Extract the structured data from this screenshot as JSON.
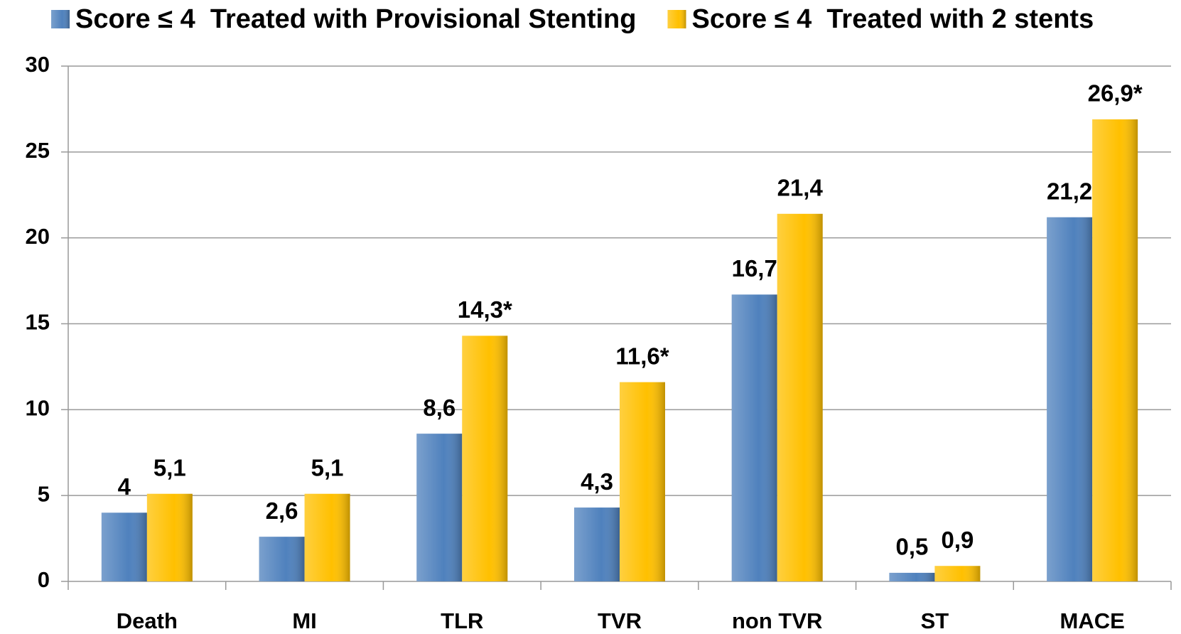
{
  "chart_data": {
    "type": "bar",
    "categories": [
      "Death",
      "MI",
      "TLR",
      "TVR",
      "non TVR",
      "ST",
      "MACE"
    ],
    "series": [
      {
        "name": "Score ≤ 4  Treated with Provisional Stenting",
        "color": "#4f81bd",
        "values": [
          4,
          2.6,
          8.6,
          4.3,
          16.7,
          0.5,
          21.2
        ],
        "value_labels": [
          "4",
          "2,6",
          "8,6",
          "4,3",
          "16,7",
          "0,5",
          "21,2"
        ]
      },
      {
        "name": "Score ≤ 4  Treated with 2 stents",
        "color": "#ffc000",
        "values": [
          5.1,
          5.1,
          14.3,
          11.6,
          21.4,
          0.9,
          26.9
        ],
        "value_labels": [
          "5,1",
          "5,1",
          "14,3*",
          "11,6*",
          "21,4",
          "0,9",
          "26,9*"
        ]
      }
    ],
    "ylim": [
      0,
      30
    ],
    "yticks": [
      0,
      5,
      10,
      15,
      20,
      25,
      30
    ],
    "grid": true,
    "legend": "top"
  }
}
